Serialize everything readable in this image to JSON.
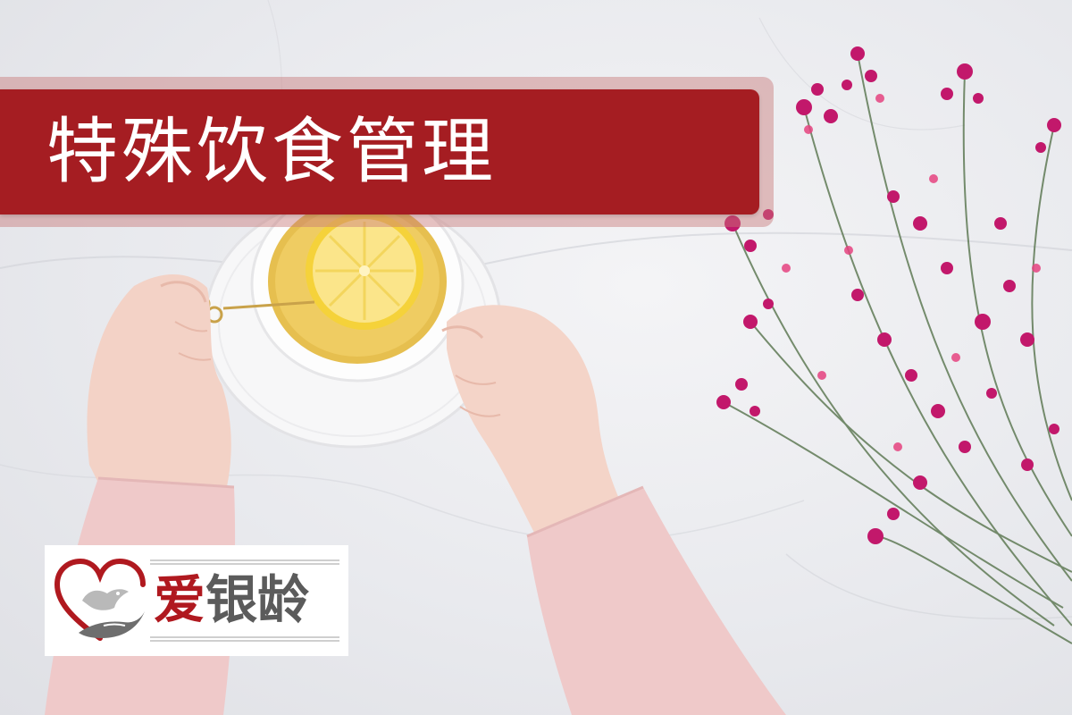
{
  "banner": {
    "title": "特殊饮食管理"
  },
  "logo": {
    "brand_first": "爱",
    "brand_rest": "银龄"
  },
  "colors": {
    "banner_red": "#a51d22",
    "logo_red": "#b0191f",
    "logo_gray": "#5b5b5b",
    "sleeve_pink": "#efc9c9",
    "flower_magenta": "#c2186b"
  }
}
